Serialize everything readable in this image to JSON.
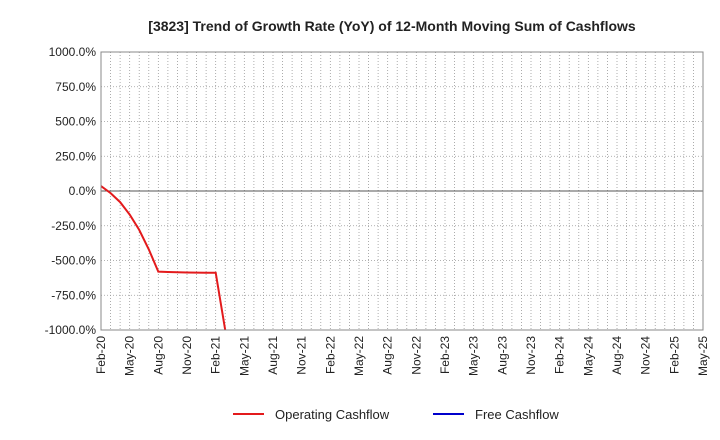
{
  "chart_data": {
    "type": "line",
    "title": "[3823]  Trend of Growth Rate (YoY) of 12-Month Moving Sum of Cashflows",
    "xlabel": "",
    "ylabel": "",
    "ylim": [
      -1000,
      1000
    ],
    "yticks": [
      1000,
      750,
      500,
      250,
      0,
      -250,
      -500,
      -750,
      -1000
    ],
    "ytick_labels": [
      "1000.0%",
      "750.0%",
      "500.0%",
      "250.0%",
      "0.0%",
      "-250.0%",
      "-500.0%",
      "-750.0%",
      "-1000.0%"
    ],
    "x_labels": [
      "Feb-20",
      "May-20",
      "Aug-20",
      "Nov-20",
      "Feb-21",
      "May-21",
      "Aug-21",
      "Nov-21",
      "Feb-22",
      "May-22",
      "Aug-22",
      "Nov-22",
      "Feb-23",
      "May-23",
      "Aug-23",
      "Nov-23",
      "Feb-24",
      "May-24",
      "Aug-24",
      "Nov-24",
      "Feb-25",
      "May-25"
    ],
    "grid": true,
    "legend_position": "bottom",
    "series": [
      {
        "name": "Operating Cashflow",
        "color": "#e31a1c",
        "points": [
          {
            "m": 0,
            "v": 35
          },
          {
            "m": 1,
            "v": -15
          },
          {
            "m": 2,
            "v": -80
          },
          {
            "m": 3,
            "v": -170
          },
          {
            "m": 4,
            "v": -280
          },
          {
            "m": 5,
            "v": -420
          },
          {
            "m": 6,
            "v": -580
          },
          {
            "m": 7,
            "v": -583
          },
          {
            "m": 8,
            "v": -585
          },
          {
            "m": 9,
            "v": -586
          },
          {
            "m": 10,
            "v": -587
          },
          {
            "m": 11,
            "v": -588
          },
          {
            "m": 12,
            "v": -588
          },
          {
            "m": 13,
            "v": -1000
          }
        ]
      },
      {
        "name": "Free Cashflow",
        "color": "#0000cc",
        "points": []
      }
    ]
  }
}
